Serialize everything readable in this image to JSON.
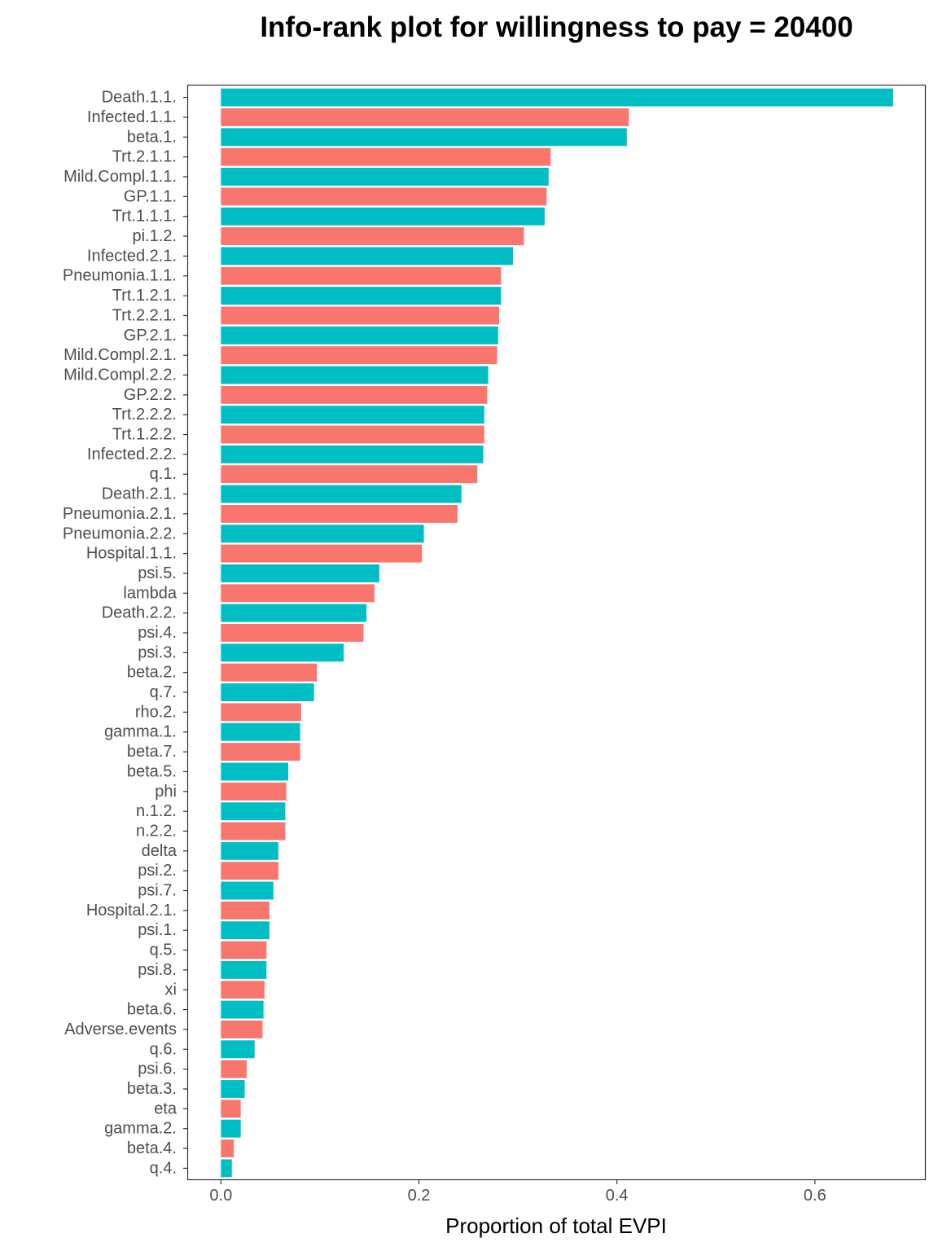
{
  "chart_data": {
    "type": "bar",
    "orientation": "horizontal",
    "title": "Info-rank plot for willingness to pay = 20400",
    "xlabel": "Proportion of total EVPI",
    "ylabel": "",
    "xlim": [
      -0.034,
      0.712
    ],
    "x_ticks": [
      0.0,
      0.2,
      0.4,
      0.6
    ],
    "x_tick_labels": [
      "0.0",
      "0.2",
      "0.4",
      "0.6"
    ],
    "grid": false,
    "legend": "none",
    "colors": [
      "#00BFC4",
      "#F8766D"
    ],
    "categories": [
      "Death.1.1.",
      "Infected.1.1.",
      "beta.1.",
      "Trt.2.1.1.",
      "Mild.Compl.1.1.",
      "GP.1.1.",
      "Trt.1.1.1.",
      "pi.1.2.",
      "Infected.2.1.",
      "Pneumonia.1.1.",
      "Trt.1.2.1.",
      "Trt.2.2.1.",
      "GP.2.1.",
      "Mild.Compl.2.1.",
      "Mild.Compl.2.2.",
      "GP.2.2.",
      "Trt.2.2.2.",
      "Trt.1.2.2.",
      "Infected.2.2.",
      "q.1.",
      "Death.2.1.",
      "Pneumonia.2.1.",
      "Pneumonia.2.2.",
      "Hospital.1.1.",
      "psi.5.",
      "lambda",
      "Death.2.2.",
      "psi.4.",
      "psi.3.",
      "beta.2.",
      "q.7.",
      "rho.2.",
      "gamma.1.",
      "beta.7.",
      "beta.5.",
      "phi",
      "n.1.2.",
      "n.2.2.",
      "delta",
      "psi.2.",
      "psi.7.",
      "Hospital.2.1.",
      "psi.1.",
      "q.5.",
      "psi.8.",
      "xi",
      "beta.6.",
      "Adverse.events",
      "q.6.",
      "psi.6.",
      "beta.3.",
      "eta",
      "gamma.2.",
      "beta.4.",
      "q.4."
    ],
    "values": [
      0.679,
      0.412,
      0.41,
      0.333,
      0.331,
      0.329,
      0.327,
      0.306,
      0.295,
      0.283,
      0.283,
      0.281,
      0.28,
      0.279,
      0.27,
      0.269,
      0.266,
      0.266,
      0.265,
      0.259,
      0.243,
      0.239,
      0.205,
      0.203,
      0.16,
      0.155,
      0.147,
      0.144,
      0.124,
      0.097,
      0.094,
      0.081,
      0.08,
      0.08,
      0.068,
      0.066,
      0.065,
      0.065,
      0.058,
      0.058,
      0.053,
      0.049,
      0.049,
      0.046,
      0.046,
      0.044,
      0.043,
      0.042,
      0.034,
      0.026,
      0.024,
      0.02,
      0.02,
      0.013,
      0.011
    ]
  }
}
